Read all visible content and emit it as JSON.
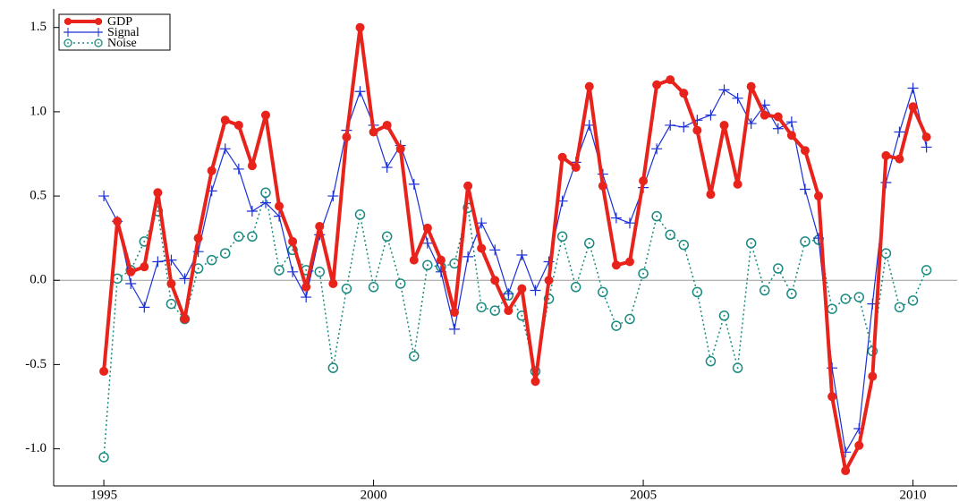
{
  "chart_data": {
    "type": "line",
    "x": [
      1995,
      1995.25,
      1995.5,
      1995.75,
      1996,
      1996.25,
      1996.5,
      1996.75,
      1997,
      1997.25,
      1997.5,
      1997.75,
      1998,
      1998.25,
      1998.5,
      1998.75,
      1999,
      1999.25,
      1999.5,
      1999.75,
      2000,
      2000.25,
      2000.5,
      2000.75,
      2001,
      2001.25,
      2001.5,
      2001.75,
      2002,
      2002.25,
      2002.5,
      2002.75,
      2003,
      2003.25,
      2003.5,
      2003.75,
      2004,
      2004.25,
      2004.5,
      2004.75,
      2005,
      2005.25,
      2005.5,
      2005.75,
      2006,
      2006.25,
      2006.5,
      2006.75,
      2007,
      2007.25,
      2007.5,
      2007.75,
      2008,
      2008.25,
      2008.5,
      2008.75,
      2009,
      2009.25,
      2009.5,
      2009.75,
      2010,
      2010.25
    ],
    "series": [
      {
        "name": "GDP",
        "color": "#e8231c",
        "values": [
          -0.54,
          0.35,
          0.05,
          0.08,
          0.52,
          -0.02,
          -0.23,
          0.25,
          0.65,
          0.95,
          0.92,
          0.68,
          0.98,
          0.44,
          0.23,
          -0.04,
          0.32,
          -0.02,
          0.85,
          1.5,
          0.88,
          0.92,
          0.78,
          0.12,
          0.31,
          0.12,
          -0.19,
          0.56,
          0.19,
          0.0,
          -0.18,
          -0.05,
          -0.6,
          0.0,
          0.73,
          0.67,
          1.15,
          0.56,
          0.09,
          0.11,
          0.59,
          1.16,
          1.19,
          1.11,
          0.89,
          0.51,
          0.92,
          0.57,
          1.15,
          0.98,
          0.97,
          0.86,
          0.77,
          0.5,
          -0.69,
          -1.13,
          -0.98,
          -0.57,
          0.74,
          0.72,
          1.03,
          0.85
        ]
      },
      {
        "name": "Signal",
        "color": "#1a2fd6",
        "values": [
          0.5,
          0.35,
          -0.02,
          -0.16,
          0.11,
          0.12,
          0.01,
          0.17,
          0.53,
          0.78,
          0.66,
          0.41,
          0.46,
          0.38,
          0.05,
          -0.1,
          0.27,
          0.5,
          0.89,
          1.12,
          0.92,
          0.67,
          0.8,
          0.57,
          0.22,
          0.05,
          -0.29,
          0.14,
          0.34,
          0.18,
          -0.08,
          0.15,
          -0.06,
          0.11,
          0.47,
          0.7,
          0.92,
          0.63,
          0.37,
          0.34,
          0.55,
          0.78,
          0.92,
          0.91,
          0.95,
          0.98,
          1.13,
          1.08,
          0.93,
          1.04,
          0.9,
          0.94,
          0.54,
          0.25,
          -0.52,
          -1.02,
          -0.88,
          -0.14,
          0.58,
          0.88,
          1.14,
          0.79
        ]
      },
      {
        "name": "Noise",
        "color": "#1a8a80",
        "values": [
          -1.05,
          0.01,
          0.06,
          0.23,
          0.41,
          -0.14,
          -0.23,
          0.07,
          0.12,
          0.16,
          0.26,
          0.26,
          0.52,
          0.06,
          0.18,
          0.06,
          0.05,
          -0.52,
          -0.05,
          0.39,
          -0.04,
          0.26,
          -0.02,
          -0.45,
          0.09,
          0.08,
          0.1,
          0.43,
          -0.16,
          -0.18,
          -0.09,
          -0.21,
          -0.54,
          -0.11,
          0.26,
          -0.04,
          0.22,
          -0.07,
          -0.27,
          -0.23,
          0.04,
          0.38,
          0.27,
          0.21,
          -0.07,
          -0.48,
          -0.21,
          -0.52,
          0.22,
          -0.06,
          0.07,
          -0.08,
          0.23,
          0.24,
          -0.17,
          -0.11,
          -0.1,
          -0.42,
          0.16,
          -0.16,
          -0.12,
          0.06
        ]
      }
    ],
    "xlim": [
      1994.07,
      2010.82
    ],
    "xticks": [
      1995,
      2000,
      2005,
      2010
    ],
    "ylim": [
      -1.22,
      1.61
    ],
    "yticks": [
      {
        "value": -1,
        "label": "-1.0"
      },
      -0.5,
      {
        "value": 0,
        "label": "0.0"
      },
      0.5,
      {
        "value": 1,
        "label": "1.0"
      },
      1.5
    ],
    "legend": "top-left"
  }
}
